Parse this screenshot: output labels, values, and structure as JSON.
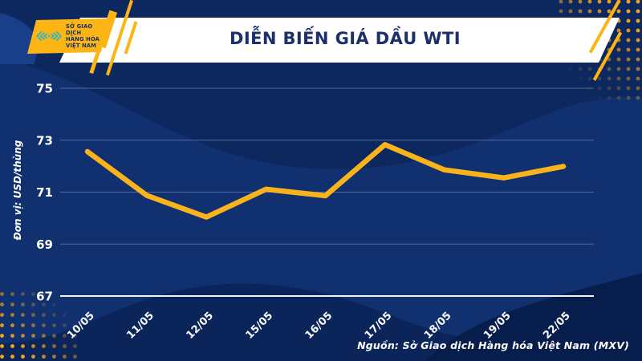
{
  "header": {
    "title": "DIỄN BIẾN GIÁ DẦU WTI",
    "logo": {
      "line1": "SỞ GIAO DỊCH",
      "line2": "HÀNG HÓA",
      "line3": "VIỆT NAM"
    }
  },
  "chart_data": {
    "type": "line",
    "title": "DIỄN BIẾN GIÁ DẦU WTI",
    "ylabel": "Đơn vị: USD/thùng",
    "xlabel": "",
    "categories": [
      "10/05",
      "11/05",
      "12/05",
      "15/05",
      "16/05",
      "17/05",
      "18/05",
      "19/05",
      "22/05"
    ],
    "values": [
      72.56,
      70.87,
      70.04,
      71.11,
      70.86,
      72.83,
      71.86,
      71.55,
      71.99
    ],
    "yticks": [
      75,
      73,
      71,
      69,
      67
    ],
    "ylim": [
      67,
      75
    ],
    "grid": true,
    "legend": "none",
    "x_label_rotation": -45
  },
  "footer": {
    "source": "Nguồn: Sở Giao dịch Hàng hóa Việt Nam (MXV)"
  },
  "colors": {
    "background_navy": "#10306F",
    "wave_dark_navy": "#0B2559",
    "accent_yellow": "#FDB515",
    "line_yellow": "#F9B31B",
    "logo_teal": "#29B6C9",
    "title_navy": "#1C2F6B",
    "gridline": "#93A7CC",
    "axis_white": "#FFFFFF"
  }
}
